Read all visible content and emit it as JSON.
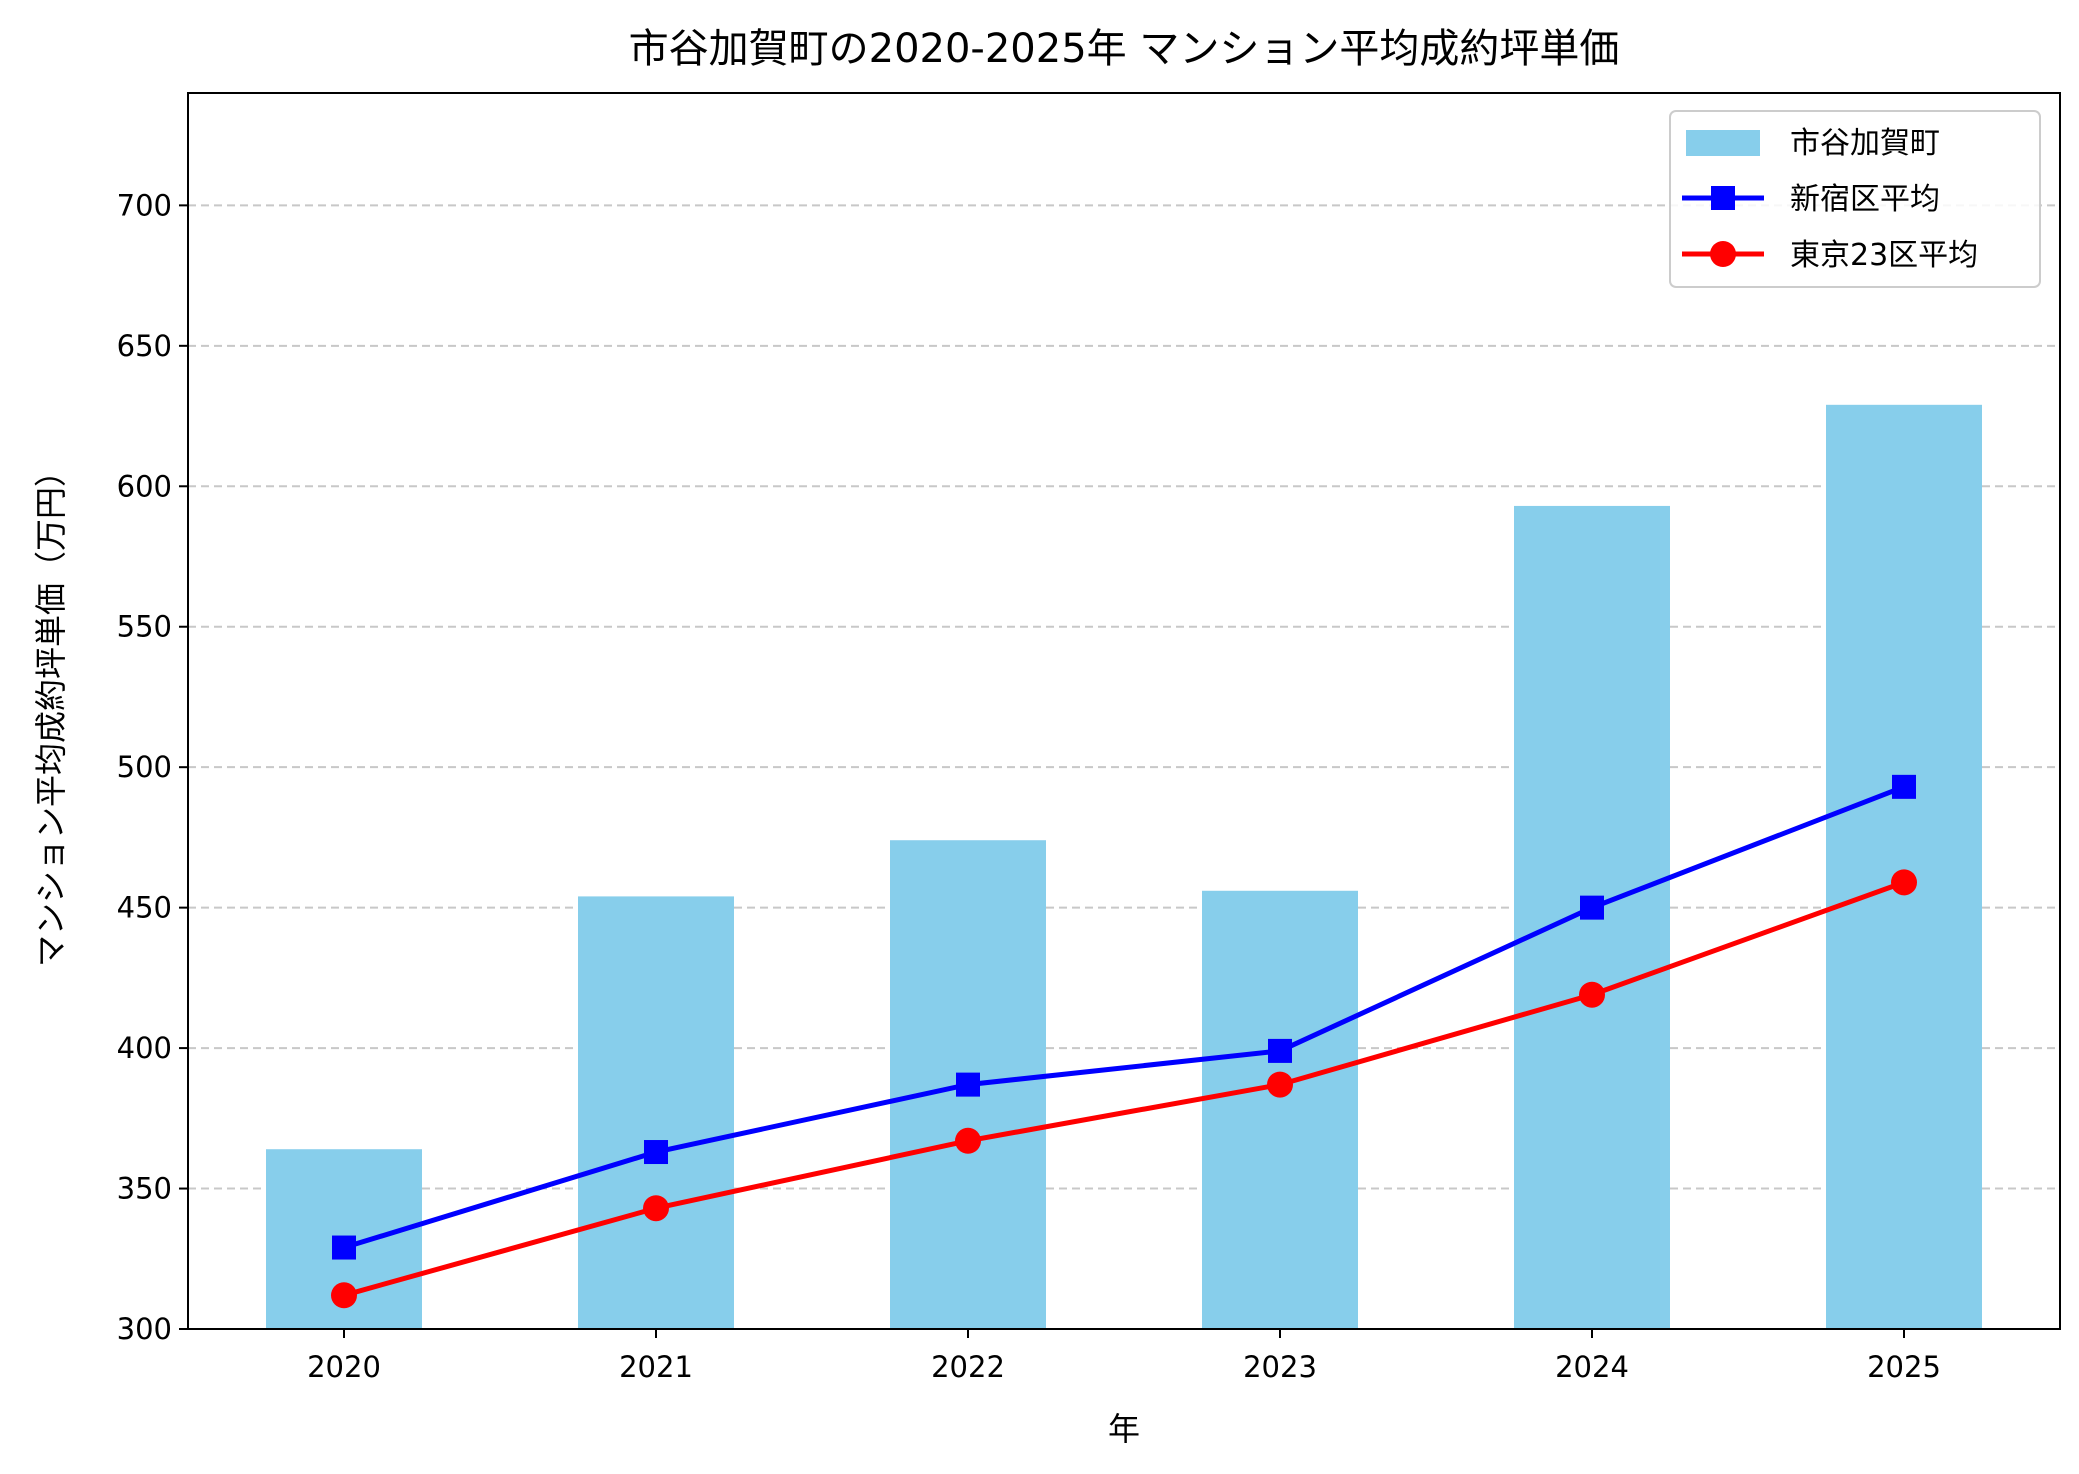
{
  "chart_data": {
    "type": "bar+line",
    "title": "市谷加賀町の2020-2025年 マンション平均成約坪単価",
    "xlabel": "年",
    "ylabel": "マンション平均成約坪単価（万円）",
    "categories": [
      "2020",
      "2021",
      "2022",
      "2023",
      "2024",
      "2025"
    ],
    "ylim": [
      300,
      740
    ],
    "yticks": [
      300,
      350,
      400,
      450,
      500,
      550,
      600,
      650,
      700
    ],
    "grid": "y-dashed",
    "legend_position": "top-right",
    "series": [
      {
        "name": "市谷加賀町",
        "kind": "bar",
        "color": "#87CEEB",
        "values": [
          364,
          454,
          474,
          456,
          593,
          629
        ]
      },
      {
        "name": "新宿区平均",
        "kind": "line",
        "marker": "square",
        "color": "#0000FF",
        "values": [
          329,
          363,
          387,
          399,
          450,
          493
        ]
      },
      {
        "name": "東京23区平均",
        "kind": "line",
        "marker": "circle",
        "color": "#FF0000",
        "values": [
          312,
          343,
          367,
          387,
          419,
          459
        ]
      }
    ]
  }
}
